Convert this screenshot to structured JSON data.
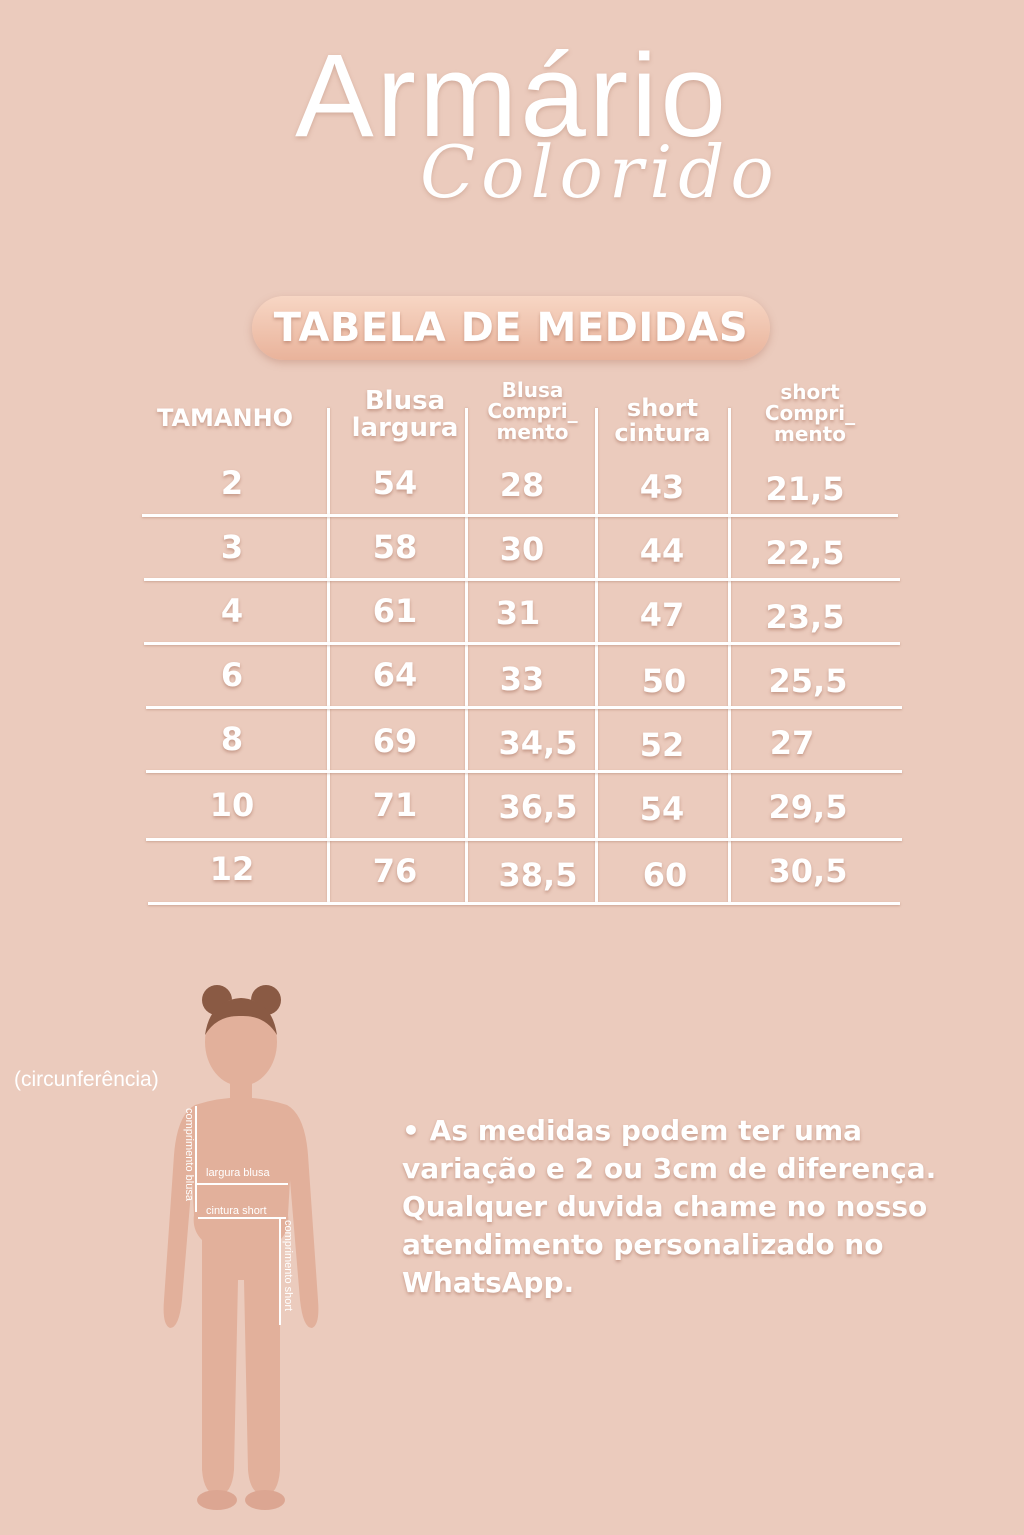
{
  "brand": {
    "name_main": "Armário",
    "name_script": "Colorido"
  },
  "title": "TABELA DE MEDIDAS",
  "table": {
    "headers": {
      "size": "TAMANHO",
      "blusa_largura": [
        "Blusa",
        "largura"
      ],
      "blusa_comprimento": [
        "Blusa",
        "Compri_",
        "mento"
      ],
      "short_cintura": [
        "short",
        "cintura"
      ],
      "short_comprimento": [
        "short",
        "Compri_",
        "mento"
      ]
    },
    "rows": [
      [
        "2",
        "54",
        "28",
        "43",
        "21,5"
      ],
      [
        "3",
        "58",
        "30",
        "44",
        "22,5"
      ],
      [
        "4",
        "61",
        "31",
        "47",
        "23,5"
      ],
      [
        "6",
        "64",
        "33",
        "50",
        "25,5"
      ],
      [
        "8",
        "69",
        "34,5",
        "52",
        "27"
      ],
      [
        "10",
        "71",
        "36,5",
        "54",
        "29,5"
      ],
      [
        "12",
        "76",
        "38,5",
        "60",
        "30,5"
      ]
    ]
  },
  "figure": {
    "circumference_label": "(circunferência)",
    "label_comprimento_blusa": "comprimento blusa",
    "label_largura_blusa": "largura blusa",
    "label_cintura_short": "cintura short",
    "label_comprimento_short": "comprimento short"
  },
  "note": "• As medidas podem ter uma variação e 2 ou 3cm de diferença. Qualquer duvida chame no nosso atendimento personalizado no WhatsApp.",
  "colors": {
    "background": "#ebcbbd",
    "text": "#ffffff",
    "pill": "#e9b39b",
    "skin": "#e3b39e",
    "hair": "#8a5a44"
  }
}
